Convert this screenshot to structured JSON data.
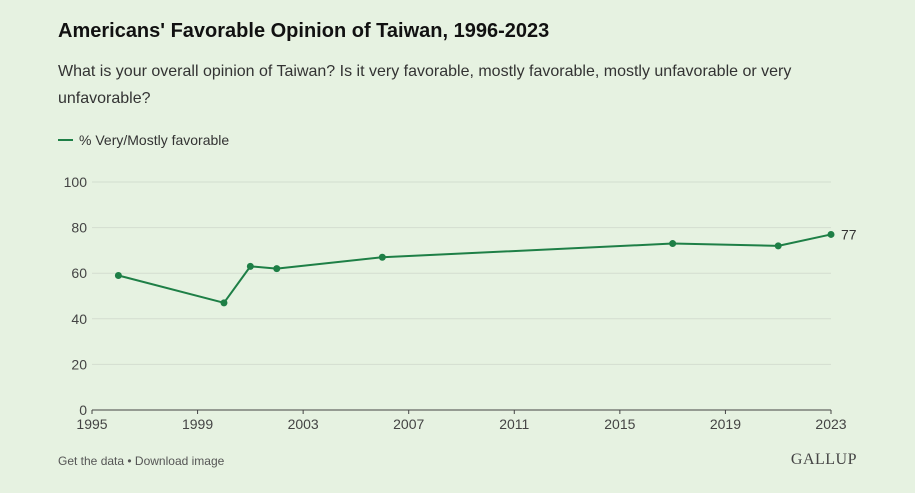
{
  "colors": {
    "background": "#e6f2e1",
    "series": "#1e7f46",
    "grid": "#d3ddd0",
    "axis": "#444444"
  },
  "footer": {
    "get_data": "Get the data",
    "separator": " • ",
    "download": "Download image",
    "brand": "GALLUP"
  },
  "chart_data": {
    "type": "line",
    "title": "Americans' Favorable Opinion of Taiwan, 1996-2023",
    "subtitle": "What is your overall opinion of Taiwan? Is it very favorable, mostly favorable, mostly unfavorable or very unfavorable?",
    "xlim": [
      1995,
      2023
    ],
    "ylim": [
      0,
      100
    ],
    "x_ticks": [
      1995,
      1999,
      2003,
      2007,
      2011,
      2015,
      2019,
      2023
    ],
    "y_ticks": [
      0,
      20,
      40,
      60,
      80,
      100
    ],
    "grid": true,
    "legend_position": "top-left",
    "series": [
      {
        "name": "% Very/Mostly favorable",
        "x": [
          1996,
          2000,
          2001,
          2002,
          2006,
          2017,
          2021,
          2023
        ],
        "y": [
          59,
          47,
          63,
          62,
          67,
          73,
          72,
          77
        ],
        "end_label": "77"
      }
    ]
  }
}
